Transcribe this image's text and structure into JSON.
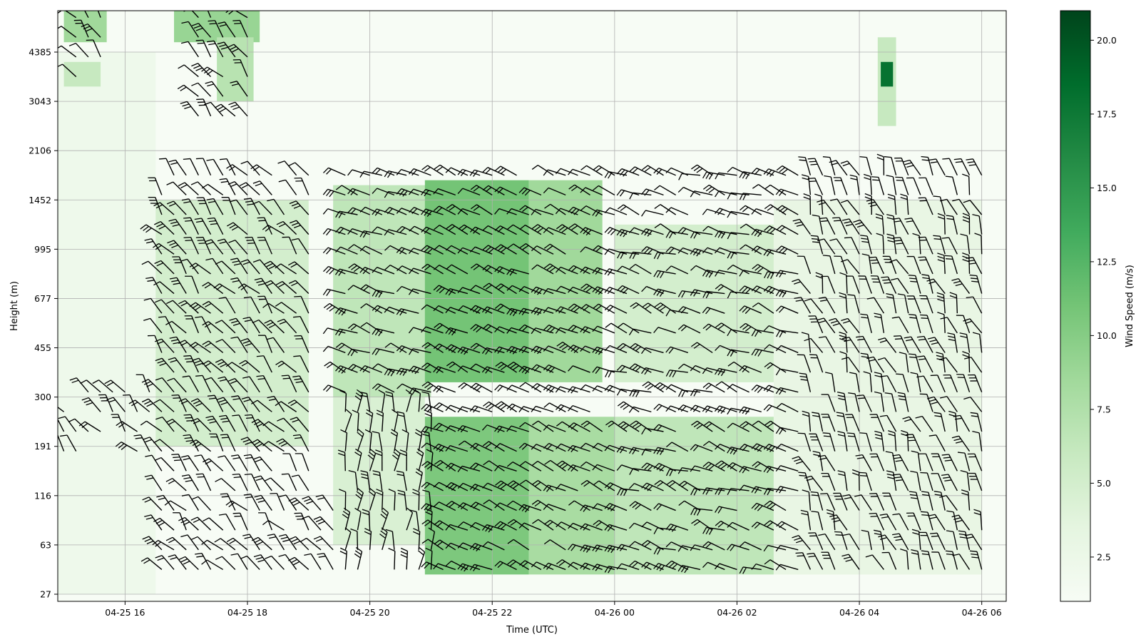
{
  "chart_data": {
    "type": "heatmap",
    "title": "",
    "xlabel": "Time (UTC)",
    "ylabel": "Height (m)",
    "colorbar_label": "Wind Speed (m/s)",
    "colormap": "Greens",
    "grid": true,
    "x_tick_labels": [
      "04-25 16",
      "04-25 18",
      "04-25 20",
      "04-25 22",
      "04-26 00",
      "04-26 02",
      "04-26 04",
      "04-26 06"
    ],
    "y_tick_labels": [
      "27",
      "63",
      "116",
      "191",
      "300",
      "455",
      "677",
      "995",
      "1452",
      "2106",
      "3043",
      "4385"
    ],
    "colorbar_ticks": [
      "2.5",
      "5.0",
      "7.5",
      "10.0",
      "12.5",
      "15.0",
      "17.5",
      "20.0"
    ],
    "colorbar_range": [
      1.0,
      21.0
    ],
    "x_range_hours": [
      14.9,
      30.4
    ],
    "colors": {
      "cmap_low": "#f7fcf5",
      "cmap_high": "#00441b",
      "barb": "#000000",
      "grid": "#b0b0b0"
    },
    "regions": [
      {
        "t0": 14.9,
        "t1": 16.5,
        "z0": 0,
        "z1": 11,
        "speed": 2.2
      },
      {
        "t0": 16.5,
        "t1": 19.0,
        "z0": 3,
        "z1": 8,
        "speed": 5.0
      },
      {
        "t0": 19.4,
        "t1": 20.9,
        "z0": 1,
        "z1": 4,
        "speed": 4.5
      },
      {
        "t0": 19.4,
        "t1": 21.0,
        "z0": 4,
        "z1": 8.3,
        "speed": 6.5
      },
      {
        "t0": 20.9,
        "t1": 22.6,
        "z0": 0.4,
        "z1": 3.6,
        "speed": 10.5
      },
      {
        "t0": 20.9,
        "t1": 22.6,
        "z0": 4.3,
        "z1": 8.4,
        "speed": 11.0
      },
      {
        "t0": 22.6,
        "t1": 24.0,
        "z0": 0.4,
        "z1": 3.6,
        "speed": 8.0
      },
      {
        "t0": 22.6,
        "t1": 23.8,
        "z0": 4.3,
        "z1": 8.4,
        "speed": 8.5
      },
      {
        "t0": 24.0,
        "t1": 26.6,
        "z0": 0.4,
        "z1": 3.6,
        "speed": 6.5
      },
      {
        "t0": 24.0,
        "t1": 26.6,
        "z0": 4.3,
        "z1": 7.5,
        "speed": 5.0
      },
      {
        "t0": 26.6,
        "t1": 30.0,
        "z0": 0.4,
        "z1": 8.0,
        "speed": 3.0
      },
      {
        "t0": 15.0,
        "t1": 15.7,
        "z0": 11.2,
        "z1": 12.0,
        "speed": 8.5
      },
      {
        "t0": 15.0,
        "t1": 15.6,
        "z0": 10.3,
        "z1": 10.8,
        "speed": 6.0
      },
      {
        "t0": 16.8,
        "t1": 18.2,
        "z0": 11.2,
        "z1": 12.0,
        "speed": 9.0
      },
      {
        "t0": 17.5,
        "t1": 18.1,
        "z0": 10.0,
        "z1": 11.3,
        "speed": 7.0
      },
      {
        "t0": 28.3,
        "t1": 28.6,
        "z0": 9.5,
        "z1": 11.3,
        "speed": 6.0
      },
      {
        "t0": 28.35,
        "t1": 28.55,
        "z0": 10.3,
        "z1": 10.8,
        "speed": 18.0
      }
    ]
  }
}
